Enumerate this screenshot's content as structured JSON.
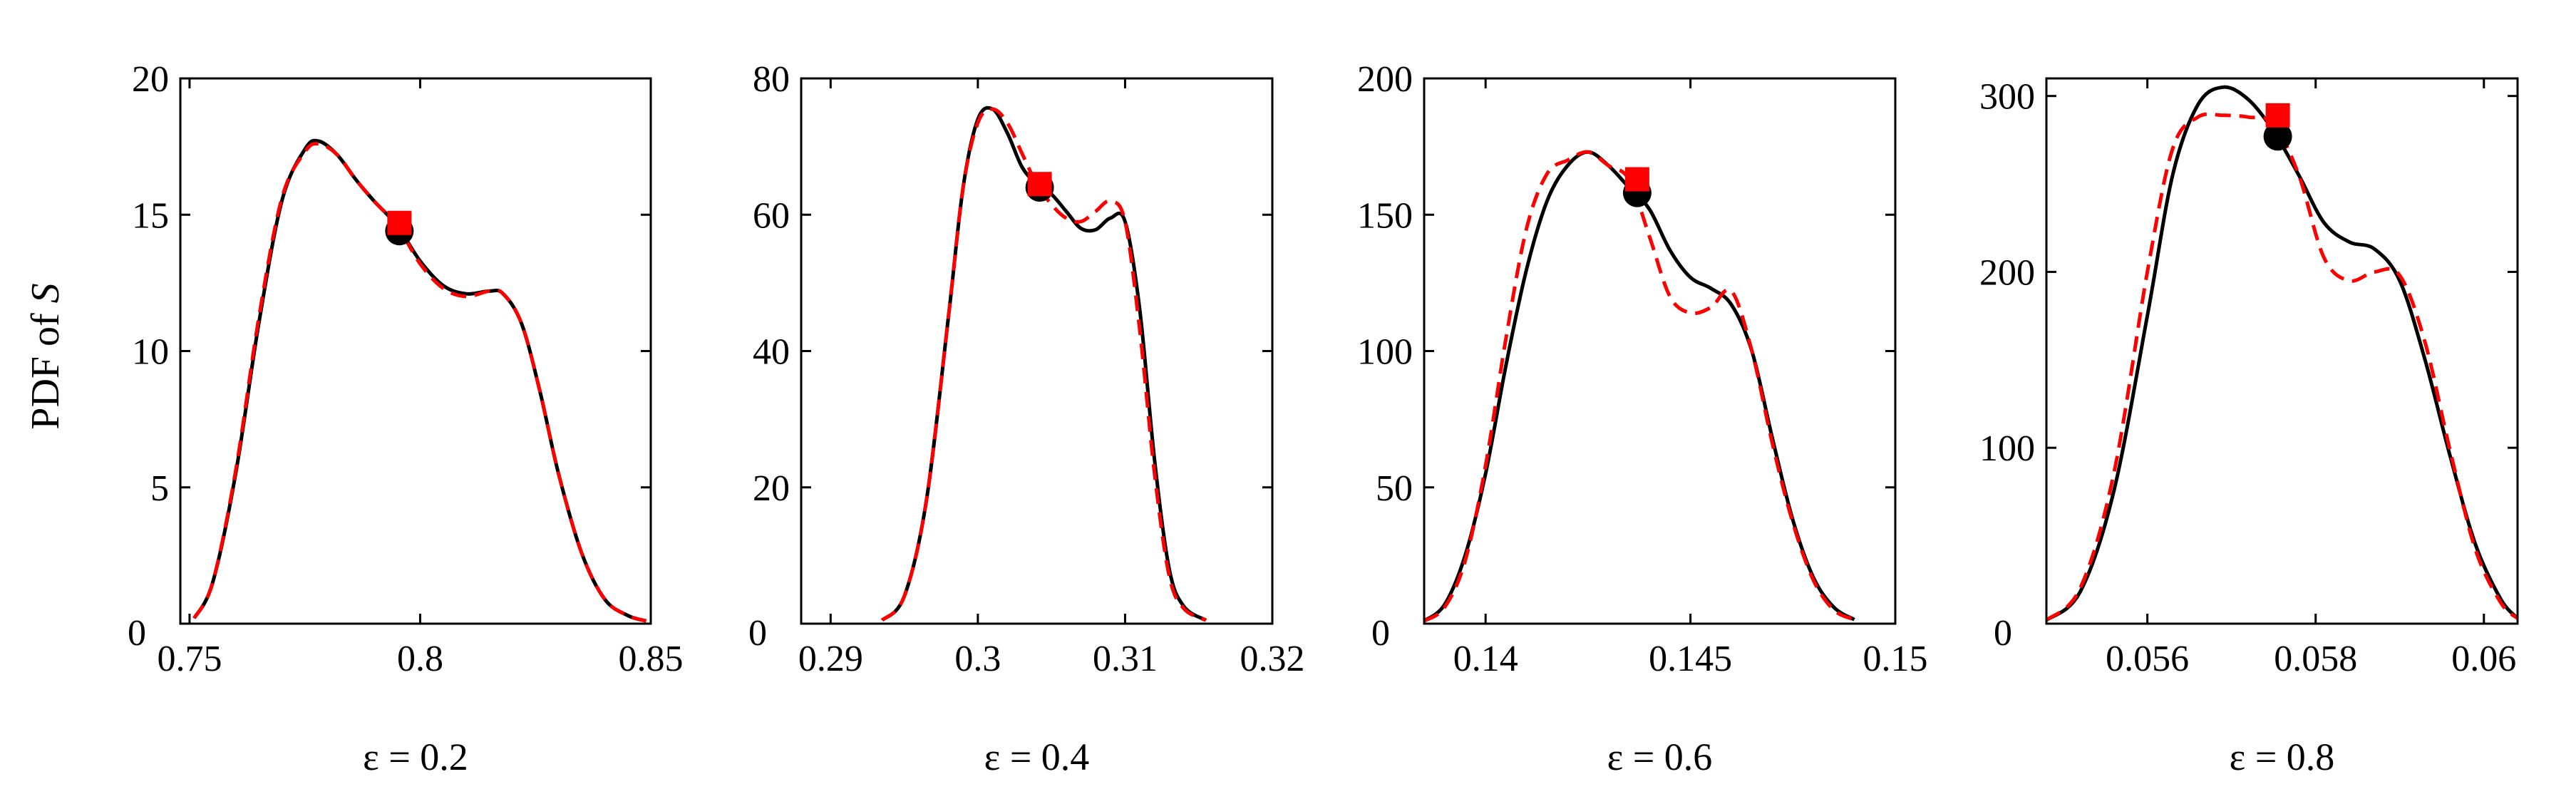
{
  "y_label_prefix": "PDF of ",
  "y_label_var": "S",
  "chart_data": [
    {
      "type": "line",
      "caption": "ε = 0.2",
      "xlim": [
        0.748,
        0.85
      ],
      "ylim": [
        0,
        20
      ],
      "xticks": [
        0.75,
        0.8,
        0.85
      ],
      "xtick_labels": [
        "0.75",
        "0.8",
        "0.85"
      ],
      "yticks": [
        5,
        10,
        15,
        20
      ],
      "ytick_labels": [
        "5",
        "10",
        "15",
        "20"
      ],
      "zero_label": "0",
      "series": [
        {
          "style": "solid",
          "color": "#000000",
          "x": [
            0.751,
            0.755,
            0.76,
            0.765,
            0.77,
            0.775,
            0.778,
            0.782,
            0.786,
            0.79,
            0.795,
            0.8,
            0.805,
            0.81,
            0.815,
            0.818,
            0.822,
            0.826,
            0.83,
            0.835,
            0.84,
            0.845,
            0.849
          ],
          "y": [
            0.2,
            1.5,
            5.5,
            11.0,
            15.5,
            17.4,
            17.7,
            17.2,
            16.3,
            15.5,
            14.6,
            13.3,
            12.4,
            12.1,
            12.2,
            12.1,
            11.0,
            8.5,
            5.5,
            2.6,
            0.9,
            0.3,
            0.1
          ]
        },
        {
          "style": "dashed",
          "color": "#ff0000",
          "x": [
            0.751,
            0.755,
            0.76,
            0.765,
            0.77,
            0.775,
            0.778,
            0.782,
            0.786,
            0.79,
            0.795,
            0.8,
            0.805,
            0.81,
            0.815,
            0.818,
            0.822,
            0.826,
            0.83,
            0.835,
            0.84,
            0.845,
            0.849
          ],
          "y": [
            0.2,
            1.5,
            5.6,
            11.2,
            15.6,
            17.3,
            17.6,
            17.2,
            16.3,
            15.5,
            14.6,
            13.2,
            12.3,
            12.0,
            12.2,
            12.1,
            11.0,
            8.5,
            5.5,
            2.6,
            0.9,
            0.3,
            0.1
          ]
        }
      ],
      "markers": [
        {
          "shape": "circle",
          "color": "#000000",
          "x": 0.7955,
          "y": 14.4
        },
        {
          "shape": "square",
          "color": "#ff0000",
          "x": 0.7955,
          "y": 14.7
        }
      ]
    },
    {
      "type": "line",
      "caption": "ε = 0.4",
      "xlim": [
        0.288,
        0.32
      ],
      "ylim": [
        0,
        80
      ],
      "xticks": [
        0.29,
        0.3,
        0.31,
        0.32
      ],
      "xtick_labels": [
        "0.29",
        "0.3",
        "0.31",
        "0.32"
      ],
      "yticks": [
        20,
        40,
        60,
        80
      ],
      "ytick_labels": [
        "20",
        "40",
        "60",
        "80"
      ],
      "zero_label": "0",
      "series": [
        {
          "style": "solid",
          "color": "#000000",
          "x": [
            0.2935,
            0.295,
            0.2965,
            0.298,
            0.299,
            0.3,
            0.301,
            0.302,
            0.303,
            0.304,
            0.305,
            0.306,
            0.307,
            0.308,
            0.309,
            0.31,
            0.311,
            0.312,
            0.313,
            0.314,
            0.3155
          ],
          "y": [
            0.5,
            4.0,
            18.0,
            45.0,
            64.0,
            74.0,
            75.5,
            72.0,
            67.0,
            64.5,
            63.0,
            60.5,
            58.0,
            57.8,
            59.5,
            59.0,
            46.0,
            24.0,
            8.0,
            2.5,
            0.5
          ]
        },
        {
          "style": "dashed",
          "color": "#ff0000",
          "x": [
            0.2935,
            0.295,
            0.2965,
            0.298,
            0.299,
            0.3,
            0.301,
            0.302,
            0.303,
            0.304,
            0.305,
            0.306,
            0.307,
            0.308,
            0.309,
            0.31,
            0.311,
            0.312,
            0.313,
            0.314,
            0.3155
          ],
          "y": [
            0.5,
            4.0,
            18.0,
            45.0,
            64.0,
            73.5,
            75.5,
            73.5,
            69.0,
            64.5,
            61.5,
            59.5,
            59.0,
            60.5,
            62.0,
            59.0,
            43.0,
            22.0,
            7.0,
            2.2,
            0.5
          ]
        }
      ],
      "markers": [
        {
          "shape": "circle",
          "color": "#000000",
          "x": 0.3042,
          "y": 64.0
        },
        {
          "shape": "square",
          "color": "#ff0000",
          "x": 0.3042,
          "y": 64.5
        }
      ]
    },
    {
      "type": "line",
      "caption": "ε = 0.6",
      "xlim": [
        0.1385,
        0.15
      ],
      "ylim": [
        0,
        200
      ],
      "xticks": [
        0.14,
        0.145,
        0.15
      ],
      "xtick_labels": [
        "0.14",
        "0.145",
        "0.15"
      ],
      "yticks": [
        50,
        100,
        150,
        200
      ],
      "ytick_labels": [
        "50",
        "100",
        "150",
        "200"
      ],
      "zero_label": "0",
      "series": [
        {
          "style": "solid",
          "color": "#000000",
          "x": [
            0.1385,
            0.139,
            0.1395,
            0.14,
            0.1405,
            0.141,
            0.1415,
            0.142,
            0.1425,
            0.143,
            0.1435,
            0.144,
            0.1445,
            0.145,
            0.1455,
            0.146,
            0.1465,
            0.147,
            0.1475,
            0.148,
            0.1485,
            0.149
          ],
          "y": [
            1.0,
            7.0,
            25.0,
            55.0,
            95.0,
            130.0,
            155.0,
            168.0,
            173.0,
            168.0,
            160.0,
            152.0,
            137.0,
            127.0,
            123.0,
            117.0,
            100.0,
            68.0,
            38.0,
            17.0,
            6.0,
            1.5
          ]
        },
        {
          "style": "dashed",
          "color": "#ff0000",
          "x": [
            0.1385,
            0.139,
            0.1395,
            0.14,
            0.1405,
            0.141,
            0.1415,
            0.142,
            0.1425,
            0.143,
            0.1435,
            0.144,
            0.1445,
            0.145,
            0.1455,
            0.146,
            0.1465,
            0.147,
            0.1475,
            0.148,
            0.1485,
            0.149
          ],
          "y": [
            1.0,
            6.0,
            23.0,
            58.0,
            105.0,
            145.0,
            165.0,
            170.0,
            173.0,
            168.0,
            163.0,
            142.0,
            120.0,
            114.0,
            116.0,
            122.0,
            100.0,
            66.0,
            37.0,
            16.0,
            5.0,
            1.5
          ]
        }
      ],
      "markers": [
        {
          "shape": "circle",
          "color": "#000000",
          "x": 0.1437,
          "y": 158.0
        },
        {
          "shape": "square",
          "color": "#ff0000",
          "x": 0.1437,
          "y": 163.0
        }
      ]
    },
    {
      "type": "line",
      "caption": "ε = 0.8",
      "xlim": [
        0.0548,
        0.0604
      ],
      "ylim": [
        0,
        310
      ],
      "xticks": [
        0.056,
        0.058,
        0.06
      ],
      "xtick_labels": [
        "0.056",
        "0.058",
        "0.06"
      ],
      "yticks": [
        100,
        200,
        300
      ],
      "ytick_labels": [
        "100",
        "200",
        "300"
      ],
      "zero_label": "0",
      "series": [
        {
          "style": "solid",
          "color": "#000000",
          "x": [
            0.0548,
            0.0552,
            0.0556,
            0.056,
            0.0563,
            0.0566,
            0.0569,
            0.0572,
            0.0575,
            0.0578,
            0.0581,
            0.0584,
            0.0587,
            0.059,
            0.0593,
            0.0596,
            0.0599,
            0.0602,
            0.0604
          ],
          "y": [
            2.0,
            18.0,
            75.0,
            175.0,
            255.0,
            295.0,
            305.0,
            298.0,
            280.0,
            255.0,
            228.0,
            217.0,
            213.0,
            195.0,
            150.0,
            95.0,
            45.0,
            14.0,
            3.0
          ]
        },
        {
          "style": "dashed",
          "color": "#ff0000",
          "x": [
            0.0548,
            0.0552,
            0.0556,
            0.056,
            0.0563,
            0.0566,
            0.0569,
            0.0572,
            0.0575,
            0.0578,
            0.0581,
            0.0584,
            0.0587,
            0.059,
            0.0593,
            0.0596,
            0.0599,
            0.0602,
            0.0604
          ],
          "y": [
            2.0,
            20.0,
            85.0,
            200.0,
            270.0,
            288.0,
            289.0,
            288.0,
            284.0,
            255.0,
            208.0,
            195.0,
            200.0,
            198.0,
            160.0,
            98.0,
            42.0,
            12.0,
            3.0
          ]
        }
      ],
      "markers": [
        {
          "shape": "circle",
          "color": "#000000",
          "x": 0.05755,
          "y": 277.0
        },
        {
          "shape": "square",
          "color": "#ff0000",
          "x": 0.05755,
          "y": 289.0
        }
      ]
    }
  ]
}
